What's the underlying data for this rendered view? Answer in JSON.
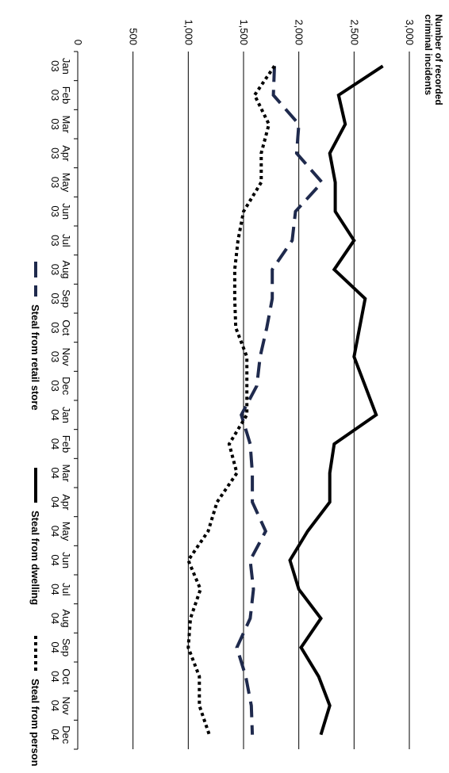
{
  "chart_data": {
    "type": "line",
    "title": "",
    "ylabel": [
      "Number of recorded",
      "criminal incidents"
    ],
    "xlabel": "",
    "ylim": [
      0,
      3000
    ],
    "y_ticks": [
      "0",
      "500",
      "1,000",
      "1,500",
      "2,000",
      "2,500",
      "3,000"
    ],
    "categories": [
      [
        "Jan",
        "03"
      ],
      [
        "Feb",
        "03"
      ],
      [
        "Mar",
        "03"
      ],
      [
        "Apr",
        "03"
      ],
      [
        "May",
        "03"
      ],
      [
        "Jun",
        "03"
      ],
      [
        "Jul",
        "03"
      ],
      [
        "Aug",
        "03"
      ],
      [
        "Sep",
        "03"
      ],
      [
        "Oct",
        "03"
      ],
      [
        "Nov",
        "03"
      ],
      [
        "Dec",
        "03"
      ],
      [
        "Jan",
        "04"
      ],
      [
        "Feb",
        "04"
      ],
      [
        "Mar",
        "04"
      ],
      [
        "Apr",
        "04"
      ],
      [
        "May",
        "04"
      ],
      [
        "Jun",
        "04"
      ],
      [
        "Jul",
        "04"
      ],
      [
        "Aug",
        "04"
      ],
      [
        "Sep",
        "04"
      ],
      [
        "Oct",
        "04"
      ],
      [
        "Nov",
        "04"
      ],
      [
        "Dec",
        "04"
      ]
    ],
    "grid": "horizontal",
    "legend_position": "bottom",
    "series": [
      {
        "name": "Steal from retail store",
        "style": "dashed",
        "color": "#1f2a4d",
        "values": [
          1780,
          1770,
          2000,
          1980,
          2210,
          1970,
          1940,
          1760,
          1760,
          1710,
          1650,
          1620,
          1480,
          1560,
          1580,
          1580,
          1700,
          1560,
          1590,
          1560,
          1440,
          1520,
          1570,
          1580
        ]
      },
      {
        "name": "Steal from dwelling",
        "style": "solid",
        "color": "#000000",
        "values": [
          2760,
          2360,
          2420,
          2280,
          2330,
          2330,
          2500,
          2320,
          2600,
          2550,
          2500,
          2600,
          2700,
          2320,
          2280,
          2280,
          2080,
          1920,
          2000,
          2200,
          2020,
          2180,
          2280,
          2200
        ]
      },
      {
        "name": "Steal from person",
        "style": "dotted",
        "color": "#000000",
        "values": [
          1780,
          1600,
          1730,
          1660,
          1660,
          1500,
          1450,
          1420,
          1420,
          1430,
          1530,
          1530,
          1530,
          1370,
          1440,
          1260,
          1180,
          1000,
          1110,
          1020,
          1000,
          1100,
          1100,
          1190
        ]
      }
    ]
  }
}
